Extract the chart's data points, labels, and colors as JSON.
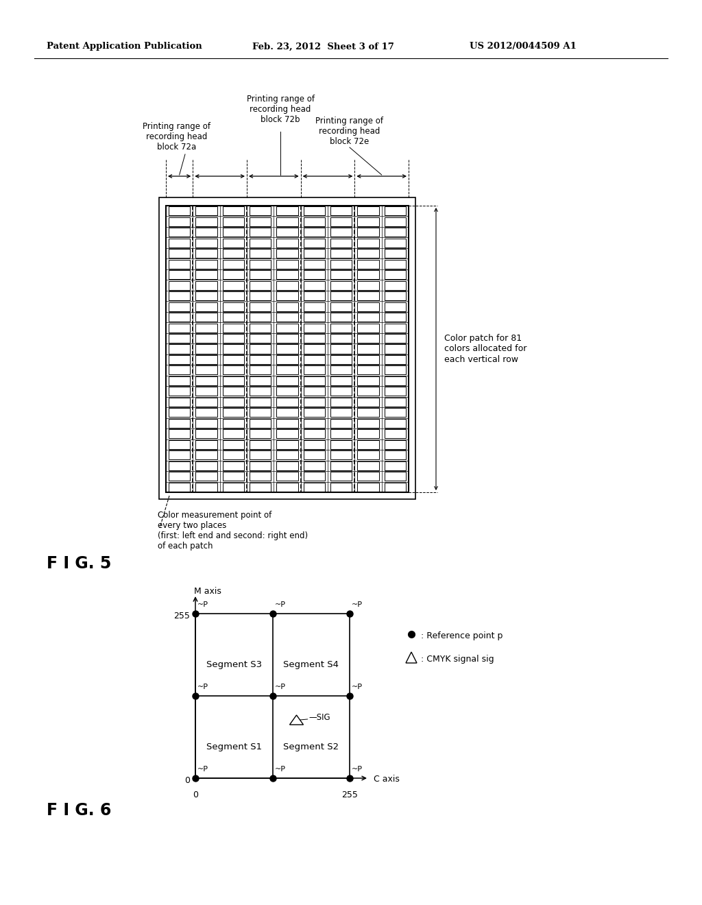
{
  "header_left": "Patent Application Publication",
  "header_mid": "Feb. 23, 2012  Sheet 3 of 17",
  "header_right": "US 2012/0044509 A1",
  "fig5_label": "F I G. 5",
  "fig6_label": "F I G. 6",
  "fig5_annotation_b": "Printing range of\nrecording head\nblock 72b",
  "fig5_annotation_a": "Printing range of\nrecording head\nblock 72a",
  "fig5_annotation_e": "Printing range of\nrecording head\nblock 72e",
  "fig5_side_annotation": "Color patch for 81\ncolors allocated for\neach vertical row",
  "fig5_bottom_annotation": "Color measurement point of\nevery two places\n(first: left end and second: right end)\nof each patch",
  "grid_rows": 27,
  "fig6_xlabel": "C axis",
  "fig6_ylabel": "M axis",
  "fig6_x0": "0",
  "fig6_x255": "255",
  "fig6_y0": "0",
  "fig6_y255": "255",
  "seg_s1": "Segment S1",
  "seg_s2": "Segment S2",
  "seg_s3": "Segment S3",
  "seg_s4": "Segment S4",
  "legend_ref": ": Reference point p",
  "legend_sig": ": CMYK signal sig",
  "bg_color": "#ffffff",
  "line_color": "#000000"
}
